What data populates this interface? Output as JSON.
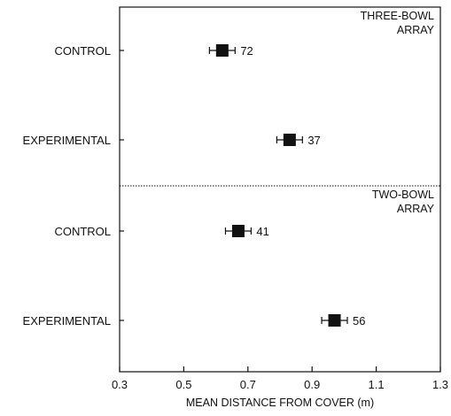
{
  "chart_data": {
    "type": "scatter",
    "xlabel": "MEAN DISTANCE FROM COVER (m)",
    "xlim": [
      0.3,
      1.3
    ],
    "xticks": [
      "0.3",
      "0.5",
      "0.7",
      "0.9",
      "1.1",
      "1.3"
    ],
    "xtick_values": [
      0.3,
      0.5,
      0.7,
      0.9,
      1.1,
      1.3
    ],
    "panels": [
      {
        "label_lines": [
          "THREE-BOWL",
          "ARRAY"
        ],
        "points": [
          {
            "category": "CONTROL",
            "mean": 0.62,
            "error": 0.04,
            "n": "72"
          },
          {
            "category": "EXPERIMENTAL",
            "mean": 0.83,
            "error": 0.04,
            "n": "37"
          }
        ]
      },
      {
        "label_lines": [
          "TWO-BOWL",
          "ARRAY"
        ],
        "points": [
          {
            "category": "CONTROL",
            "mean": 0.67,
            "error": 0.04,
            "n": "41"
          },
          {
            "category": "EXPERIMENTAL",
            "mean": 0.97,
            "error": 0.04,
            "n": "56"
          }
        ]
      }
    ],
    "divider": "dotted horizontal line between panels",
    "marker": "filled square with horizontal error bars",
    "grid": false
  }
}
